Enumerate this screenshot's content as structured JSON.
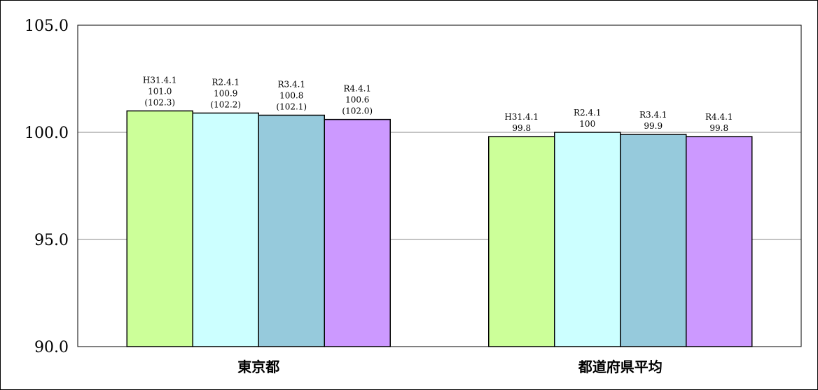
{
  "chart_data": {
    "type": "bar",
    "categories": [
      "東京都",
      "都道府県平均"
    ],
    "series": [
      {
        "label": "H31.4.1",
        "values": [
          101.0,
          99.8
        ],
        "color": "#ccff99"
      },
      {
        "label": "R2.4.1",
        "values": [
          100.9,
          100
        ],
        "color": "#ccffff"
      },
      {
        "label": "R3.4.1",
        "values": [
          100.8,
          99.9
        ],
        "color": "#96cadc"
      },
      {
        "label": "R4.4.1",
        "values": [
          100.6,
          99.8
        ],
        "color": "#cc99ff"
      }
    ],
    "data_labels": [
      [
        [
          "H31.4.1",
          "101.0",
          "(102.3)"
        ],
        [
          "R2.4.1",
          "100.9",
          "(102.2)"
        ],
        [
          "R3.4.1",
          "100.8",
          "(102.1)"
        ],
        [
          "R4.4.1",
          "100.6",
          "(102.0)"
        ]
      ],
      [
        [
          "H31.4.1",
          "99.8"
        ],
        [
          "R2.4.1",
          "100"
        ],
        [
          "R3.4.1",
          "99.9"
        ],
        [
          "R4.4.1",
          "99.8"
        ]
      ]
    ],
    "yticks": [
      "105.0",
      "100.0",
      "95.0",
      "90.0"
    ],
    "ytick_values": [
      105,
      100,
      95,
      90
    ],
    "ylim": [
      90,
      105
    ],
    "grid": true,
    "legend": "none"
  }
}
